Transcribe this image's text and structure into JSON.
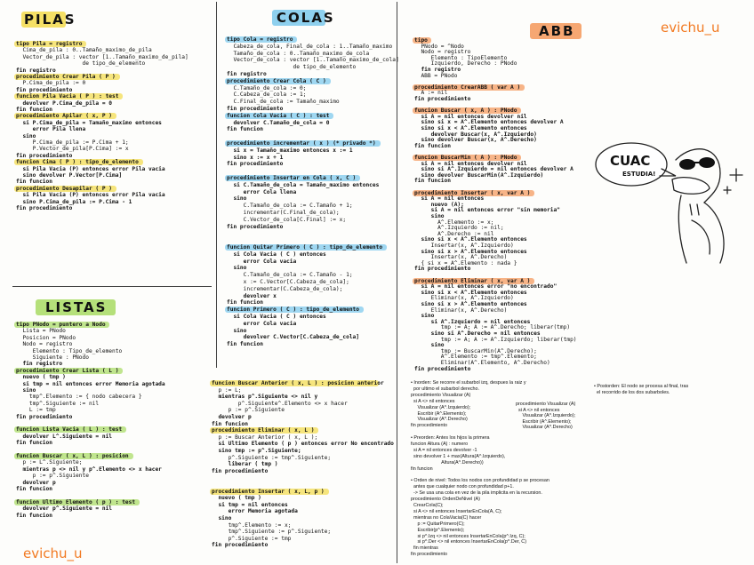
{
  "titles": {
    "pilas": "PILAS",
    "colas": "COLAS",
    "listas": "LISTAS",
    "abb": "ABB"
  },
  "signature": "evichu_u",
  "drawing": {
    "bubble_text": "CUAC",
    "bubble_sub": "ESTUDIA!"
  },
  "pilas": [
    "tipo Pila = registro",
    "  Cima_de_pila : 0..Tamaño_maximo_de_pila",
    "  Vector_de_pila : vector [1..Tamaño_maximo_de_pila]",
    "                    de tipo_de_elemento",
    "fin registro",
    "procedimiento Crear Pila ( P )",
    "  P.Cima_de_pila := 0",
    "fin procedimiento",
    "funcion Pila Vacia ( P ) : test",
    "  devolver P.Cima_de_pila = 0",
    "fin funcion",
    "procedimiento Apilar ( x, P )",
    "  si P.Cima_de_pila = Tamaño_maximo entonces",
    "     error Pila llena",
    "  sino",
    "     P.Cima_de_pila := P.Cima + 1;",
    "     P.Vector_de_pila[P.Cima] := x",
    "fin procedimiento",
    "funcion Cima ( P ) : tipo_de_elemento",
    "  si Pila Vacia (P) entonces error Pila vacia",
    "  sino devolver P.Vector[P.Cima]",
    "fin funcion",
    "procedimiento Desapilar ( P )",
    "  si Pila Vacia (P) entonces error Pila vacia",
    "  sino P.Cima_de_pila := P.Cima - 1",
    "fin procedimiento"
  ],
  "listas": [
    "tipo PNodo = puntero a Nodo",
    "  Lista = PNodo",
    "  Posicion = PNodo",
    "  Nodo = registro",
    "     Elemento : Tipo_de_elemento",
    "     Siguiente : PNodo",
    "  fin registro",
    "procedimiento Crear Lista ( L )",
    "  nuevo ( tmp )",
    "  si tmp = nil entonces error Memoria agotada",
    "  sino",
    "    tmp^.Elemento := { nodo cabecera }",
    "    tmp^.Siguiente := nil",
    "    L := tmp",
    "fin procedimiento",
    "",
    "funcion Lista Vacia ( L ) : test",
    "  devolver L^.Siguiente = nil",
    "fin funcion",
    "",
    "funcion Buscar ( x, L ) : posicion",
    "  p := L^.Siguiente;",
    "  mientras p <> nil y p^.Elemento <> x hacer",
    "     p := p^.Siguiente",
    "  devolver p",
    "fin funcion",
    "",
    "funcion Ultimo Elemento ( p ) : test",
    "  devolver p^.Siguiente = nil",
    "fin funcion"
  ],
  "colas": [
    "tipo Cola = registro",
    "  Cabeza_de_cola, Final_de_cola : 1..Tamaño_maximo",
    "  Tamaño_de_cola : 0..Tamaño_maximo_de_cola",
    "  Vector_de_cola : vector [1..Tamaño_maximo_de_cola]",
    "                    de tipo_de_elemento",
    "fin registro",
    "procedimiento Crear Cola ( C )",
    "  C.Tamaño_de_cola := 0;",
    "  C.Cabeza_de_cola := 1;",
    "  C.Final_de_cola := Tamaño_maximo",
    "fin procedimiento",
    "funcion Cola Vacia ( C ) : test",
    "  devolver C.Tamaño_de_cola = 0",
    "fin funcion",
    "",
    "procedimiento incrementar ( x ) (* privado *)",
    "  si x = Tamaño_maximo entonces x := 1",
    "  sino x := x + 1",
    "fin procedimiento",
    "",
    "procedimiento Insertar en Cola ( x, C )",
    "  si C.Tamaño_de_cola = Tamaño_maximo entonces",
    "     error Cola llena",
    "  sino",
    "     C.Tamaño_de_cola := C.Tamaño + 1;",
    "     incrementar(C.Final_de_cola);",
    "     C.Vector_de_cola[C.Final] := x;",
    "fin procedimiento",
    "",
    "",
    "funcion Quitar Primero ( C ) : tipo_de_elemento",
    "  si Cola Vacia ( C ) entonces",
    "     error Cola vacia",
    "  sino",
    "     C.Tamaño_de_cola := C.Tamaño - 1;",
    "     x := C.Vector[C.Cabeza_de_cola];",
    "     incrementar(C.Cabeza_de_cola);",
    "     devolver x",
    "fin funcion",
    "funcion Primero ( C ) : tipo_de_elemento",
    "  si Cola Vacia ( C ) entonces",
    "     error Cola vacia",
    "  sino",
    "     devolver C.Vector[C.Cabeza_de_cola]",
    "fin funcion"
  ],
  "listas2": [
    "funcion Buscar Anterior ( x, L ) : posicion anterior",
    "  p := L;",
    "  mientras p^.Siguiente <> nil y",
    "        p^.Siguiente^.Elemento <> x hacer",
    "     p := p^.Siguiente",
    "  devolver p",
    "fin funcion",
    "procedimiento Eliminar ( x, L )",
    "  p := Buscar Anterior ( x, L );",
    "  si Ultimo Elemento ( p ) entonces error No encontrado",
    "  sino tmp := p^.Siguiente;",
    "     p^.Siguiente := tmp^.Siguiente;",
    "     liberar ( tmp )",
    "fin procedimiento",
    "",
    "",
    "procedimiento Insertar ( x, L, p )",
    "  nuevo ( tmp )",
    "  si tmp = nil entonces",
    "     error Memoria agotada",
    "  sino",
    "     tmp^.Elemento := x;",
    "     tmp^.Siguiente := p^.Siguiente;",
    "     p^.Siguiente := tmp",
    "fin procedimiento"
  ],
  "abb": [
    "tipo",
    "  PNodo = ^Nodo",
    "  Nodo = registro",
    "     Elemento : TipoElemento",
    "     Izquierdo, Derecho : PNodo",
    "  fin registro",
    "  ABB = PNodo",
    "",
    "procedimiento CrearABB ( var A )",
    "  A := nil",
    "fin procedimiento",
    "",
    "funcion Buscar ( x, A ) : PNodo",
    "  si A = nil entonces devolver nil",
    "  sino si x = A^.Elemento entonces devolver A",
    "  sino si x < A^.Elemento entonces",
    "     devolver Buscar(x, A^.Izquierdo)",
    "  sino devolver Buscar(x, A^.Derecho)",
    "fin funcion",
    "",
    "funcion BuscarMin ( A ) : PNodo",
    "  si A = nil entonces devolver nil",
    "  sino si A^.Izquierdo = nil entonces devolver A",
    "  sino devolver BuscarMin(A^.Izquierdo)",
    "fin funcion",
    "",
    "procedimiento Insertar ( x, var A )",
    "  si A = nil entonces",
    "     nuevo (A);",
    "     si A = nil entonces error \"sin memoria\"",
    "     sino",
    "       A^.Elemento := x;",
    "       A^.Izquierdo := nil;",
    "       A^.Derecho := nil",
    "  sino si x < A^.Elemento entonces",
    "     Insertar(x, A^.Izquierdo)",
    "  sino si x > A^.Elemento entonces",
    "     Insertar(x, A^.Derecho)",
    "  { si x = A^.Elemento : nada }",
    "fin procedimiento",
    "",
    "procedimiento Eliminar ( x, var A )",
    "  si A = nil entonces error \"no encontrado\"",
    "  sino si x < A^.Elemento entonces",
    "     Eliminar(x, A^.Izquierdo)",
    "  sino si x > A^.Elemento entonces",
    "     Eliminar(x, A^.Derecho)",
    "  sino",
    "     si A^.Izquierdo = nil entonces",
    "        tmp := A; A := A^.Derecho; liberar(tmp)",
    "     sino si A^.Derecho = nil entonces",
    "        tmp := A; A := A^.Izquierdo; liberar(tmp)",
    "     sino",
    "        tmp := BuscarMin(A^.Derecho);",
    "        A^.Elemento := tmp^.Elemento;",
    "        Eliminar(A^.Elemento, A^.Derecho)",
    "fin procedimiento"
  ],
  "abb_notes": [
    "• Inorden: Se recorre el subarbol izq, despues la raiz y",
    "  por ultimo el subarbol derecho.",
    "procedimiento Visualizar (A)",
    "  si A <> nil entonces",
    "     Visualizar (A^.Izquierdo);",
    "     Escribir (A^.Elemento);",
    "     Visualizar (A^.Derecho)",
    "fin procedimiento",
    "",
    "• Preorden: Antes los hijos la primera",
    "funcion Altura (A) : numero",
    "  si A = nil entonces devolver -1",
    "  sino devolver 1 + max(Altura(A^.Izquierdo),",
    "                       Altura(A^.Derecho))",
    "fin funcion",
    "",
    "• Orden de nivel: Todos los nodos con profundidad p se procesan",
    "  antes que cualquier nodo con profundidad p+1.",
    "  -> Se usa una cola en vez de la pila implicita en la recursion.",
    "procedimiento OrdenDeNivel (A)",
    "  CrearCola(C);",
    "  si A <> nil entonces InsertarEnCola(A, C);",
    "  mientras no ColaVacia(C) hacer",
    "     p := QuitarPrimero(C);",
    "     Escribir(p^.Elemento);",
    "     si p^.Izq <> nil entonces InsertarEnCola(p^.Izq, C);",
    "     si p^.Der <> nil entonces InsertarEnCola(p^.Der, C)",
    "  fin mientras",
    "fin procedimiento"
  ],
  "abb_notes_right": [
    "procedimiento Visualizar (A)",
    "  si A <> nil entonces",
    "     Visualizar (A^.Izquierdo);",
    "     Escribir (A^.Elemento);",
    "     Visualizar (A^.Derecho)"
  ],
  "abb_postorden": [
    "• Postorden: El nodo se procesa al final, tras",
    "  el recorrido de los dos subarboles."
  ]
}
